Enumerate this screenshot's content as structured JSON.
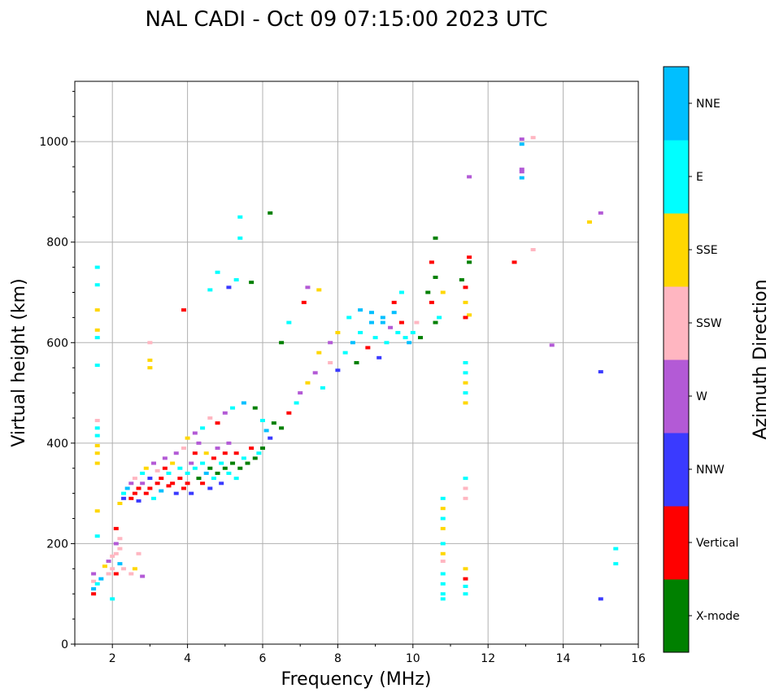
{
  "chart_data": {
    "type": "scatter",
    "title": "NAL CADI - Oct 09 07:15:00 2023 UTC",
    "xlabel": "Frequency (MHz)",
    "ylabel": "Virtual height (km)",
    "xlim": [
      1,
      16
    ],
    "ylim": [
      0,
      1120
    ],
    "x_ticks": [
      2,
      4,
      6,
      8,
      10,
      12,
      14,
      16
    ],
    "y_ticks": [
      0,
      200,
      400,
      600,
      800,
      1000
    ],
    "grid": true,
    "colorbar": {
      "label": "Azimuth Direction",
      "categories": [
        {
          "name": "X-mode",
          "color": "#008000"
        },
        {
          "name": "Vertical",
          "color": "#ff0000"
        },
        {
          "name": "NNW",
          "color": "#3a3aff"
        },
        {
          "name": "W",
          "color": "#b35ad6"
        },
        {
          "name": "SSW",
          "color": "#ffb6c1"
        },
        {
          "name": "SSE",
          "color": "#ffd700"
        },
        {
          "name": "E",
          "color": "#00ffff"
        },
        {
          "name": "NNE",
          "color": "#00bfff"
        }
      ]
    },
    "points": [
      [
        1.5,
        100,
        "Vertical"
      ],
      [
        1.5,
        110,
        "NNE"
      ],
      [
        1.5,
        125,
        "SSW"
      ],
      [
        1.5,
        140,
        "W"
      ],
      [
        1.6,
        120,
        "E"
      ],
      [
        1.6,
        415,
        "E"
      ],
      [
        1.6,
        395,
        "SSE"
      ],
      [
        1.6,
        380,
        "SSE"
      ],
      [
        1.6,
        360,
        "SSE"
      ],
      [
        1.6,
        430,
        "E"
      ],
      [
        1.6,
        445,
        "SSW"
      ],
      [
        1.6,
        555,
        "E"
      ],
      [
        1.6,
        610,
        "E"
      ],
      [
        1.6,
        625,
        "SSE"
      ],
      [
        1.6,
        665,
        "SSE"
      ],
      [
        1.6,
        715,
        "E"
      ],
      [
        1.6,
        750,
        "E"
      ],
      [
        1.6,
        265,
        "SSE"
      ],
      [
        1.6,
        215,
        "E"
      ],
      [
        1.7,
        130,
        "NNE"
      ],
      [
        1.8,
        155,
        "SSE"
      ],
      [
        1.9,
        140,
        "SSW"
      ],
      [
        1.9,
        165,
        "W"
      ],
      [
        2.0,
        150,
        "SSW"
      ],
      [
        2.0,
        175,
        "SSW"
      ],
      [
        2.0,
        90,
        "E"
      ],
      [
        2.1,
        230,
        "Vertical"
      ],
      [
        2.1,
        200,
        "W"
      ],
      [
        2.1,
        180,
        "SSW"
      ],
      [
        2.1,
        140,
        "Vertical"
      ],
      [
        2.2,
        210,
        "SSW"
      ],
      [
        2.2,
        190,
        "SSW"
      ],
      [
        2.2,
        160,
        "NNE"
      ],
      [
        2.3,
        150,
        "SSW"
      ],
      [
        2.5,
        140,
        "SSW"
      ],
      [
        2.6,
        150,
        "SSE"
      ],
      [
        2.7,
        180,
        "SSW"
      ],
      [
        2.8,
        135,
        "W"
      ],
      [
        2.2,
        280,
        "SSE"
      ],
      [
        2.3,
        300,
        "E"
      ],
      [
        2.3,
        290,
        "NNW"
      ],
      [
        2.4,
        310,
        "NNE"
      ],
      [
        2.5,
        290,
        "Vertical"
      ],
      [
        2.5,
        320,
        "W"
      ],
      [
        2.6,
        330,
        "SSW"
      ],
      [
        2.6,
        300,
        "Vertical"
      ],
      [
        2.7,
        285,
        "NNW"
      ],
      [
        2.7,
        310,
        "Vertical"
      ],
      [
        2.8,
        340,
        "E"
      ],
      [
        2.8,
        320,
        "W"
      ],
      [
        2.9,
        300,
        "Vertical"
      ],
      [
        2.9,
        350,
        "SSE"
      ],
      [
        3.0,
        310,
        "Vertical"
      ],
      [
        3.0,
        330,
        "NNW"
      ],
      [
        3.1,
        360,
        "W"
      ],
      [
        3.1,
        290,
        "E"
      ],
      [
        3.2,
        320,
        "Vertical"
      ],
      [
        3.2,
        345,
        "SSW"
      ],
      [
        3.3,
        330,
        "Vertical"
      ],
      [
        3.3,
        305,
        "NNE"
      ],
      [
        3.4,
        350,
        "Vertical"
      ],
      [
        3.4,
        370,
        "W"
      ],
      [
        3.5,
        315,
        "Vertical"
      ],
      [
        3.5,
        340,
        "E"
      ],
      [
        3.6,
        360,
        "SSE"
      ],
      [
        3.6,
        320,
        "Vertical"
      ],
      [
        3.7,
        300,
        "NNW"
      ],
      [
        3.7,
        380,
        "W"
      ],
      [
        3.8,
        330,
        "Vertical"
      ],
      [
        3.8,
        350,
        "E"
      ],
      [
        3.9,
        310,
        "Vertical"
      ],
      [
        3.9,
        390,
        "SSW"
      ],
      [
        4.0,
        340,
        "E"
      ],
      [
        4.0,
        320,
        "Vertical"
      ],
      [
        4.1,
        360,
        "W"
      ],
      [
        4.1,
        300,
        "NNW"
      ],
      [
        4.2,
        350,
        "E"
      ],
      [
        4.2,
        380,
        "Vertical"
      ],
      [
        4.3,
        330,
        "X-mode"
      ],
      [
        4.3,
        400,
        "W"
      ],
      [
        4.4,
        360,
        "E"
      ],
      [
        4.4,
        320,
        "Vertical"
      ],
      [
        4.5,
        340,
        "NNE"
      ],
      [
        4.5,
        380,
        "SSE"
      ],
      [
        4.6,
        350,
        "X-mode"
      ],
      [
        4.6,
        310,
        "NNW"
      ],
      [
        4.7,
        370,
        "Vertical"
      ],
      [
        4.7,
        330,
        "E"
      ],
      [
        4.8,
        390,
        "W"
      ],
      [
        4.8,
        340,
        "X-mode"
      ],
      [
        4.9,
        360,
        "E"
      ],
      [
        4.9,
        320,
        "NNW"
      ],
      [
        5.0,
        350,
        "X-mode"
      ],
      [
        5.0,
        380,
        "Vertical"
      ],
      [
        5.1,
        340,
        "E"
      ],
      [
        5.1,
        400,
        "W"
      ],
      [
        5.2,
        360,
        "X-mode"
      ],
      [
        5.3,
        330,
        "E"
      ],
      [
        5.3,
        380,
        "Vertical"
      ],
      [
        5.4,
        350,
        "X-mode"
      ],
      [
        5.5,
        370,
        "E"
      ],
      [
        5.6,
        360,
        "X-mode"
      ],
      [
        5.7,
        390,
        "Vertical"
      ],
      [
        5.8,
        370,
        "X-mode"
      ],
      [
        5.9,
        380,
        "E"
      ],
      [
        6.0,
        390,
        "X-mode"
      ],
      [
        4.0,
        410,
        "SSE"
      ],
      [
        4.2,
        420,
        "W"
      ],
      [
        4.4,
        430,
        "E"
      ],
      [
        4.6,
        450,
        "SSW"
      ],
      [
        4.8,
        440,
        "Vertical"
      ],
      [
        5.0,
        460,
        "W"
      ],
      [
        5.2,
        470,
        "E"
      ],
      [
        5.5,
        480,
        "NNE"
      ],
      [
        5.8,
        470,
        "X-mode"
      ],
      [
        6.0,
        445,
        "E"
      ],
      [
        6.1,
        425,
        "NNE"
      ],
      [
        6.2,
        410,
        "NNW"
      ],
      [
        6.3,
        440,
        "X-mode"
      ],
      [
        6.5,
        430,
        "X-mode"
      ],
      [
        6.7,
        460,
        "Vertical"
      ],
      [
        6.9,
        480,
        "E"
      ],
      [
        7.0,
        500,
        "W"
      ],
      [
        7.2,
        520,
        "SSE"
      ],
      [
        7.4,
        540,
        "W"
      ],
      [
        7.6,
        510,
        "E"
      ],
      [
        7.8,
        560,
        "SSW"
      ],
      [
        8.0,
        545,
        "NNW"
      ],
      [
        8.2,
        580,
        "E"
      ],
      [
        8.4,
        600,
        "NNE"
      ],
      [
        8.5,
        560,
        "X-mode"
      ],
      [
        8.6,
        620,
        "E"
      ],
      [
        8.8,
        590,
        "Vertical"
      ],
      [
        8.9,
        640,
        "NNE"
      ],
      [
        9.0,
        610,
        "E"
      ],
      [
        9.1,
        570,
        "NNW"
      ],
      [
        9.2,
        650,
        "NNE"
      ],
      [
        9.3,
        600,
        "E"
      ],
      [
        9.4,
        630,
        "W"
      ],
      [
        9.5,
        660,
        "NNE"
      ],
      [
        9.6,
        620,
        "E"
      ],
      [
        9.7,
        640,
        "Vertical"
      ],
      [
        9.8,
        610,
        "E"
      ],
      [
        9.9,
        600,
        "NNE"
      ],
      [
        10.0,
        620,
        "E"
      ],
      [
        10.1,
        640,
        "SSW"
      ],
      [
        10.2,
        610,
        "X-mode"
      ],
      [
        7.5,
        580,
        "SSE"
      ],
      [
        7.8,
        600,
        "W"
      ],
      [
        8.0,
        620,
        "SSE"
      ],
      [
        8.3,
        650,
        "E"
      ],
      [
        8.6,
        665,
        "NNE"
      ],
      [
        8.9,
        660,
        "NNE"
      ],
      [
        9.2,
        640,
        "NNE"
      ],
      [
        9.5,
        680,
        "Vertical"
      ],
      [
        9.7,
        700,
        "E"
      ],
      [
        7.2,
        710,
        "W"
      ],
      [
        7.5,
        705,
        "SSE"
      ],
      [
        7.1,
        680,
        "Vertical"
      ],
      [
        6.7,
        640,
        "E"
      ],
      [
        6.5,
        600,
        "X-mode"
      ],
      [
        5.3,
        725,
        "E"
      ],
      [
        4.8,
        740,
        "E"
      ],
      [
        4.6,
        705,
        "E"
      ],
      [
        5.1,
        710,
        "NNW"
      ],
      [
        5.7,
        720,
        "X-mode"
      ],
      [
        5.4,
        808,
        "E"
      ],
      [
        5.4,
        850,
        "E"
      ],
      [
        6.2,
        858,
        "X-mode"
      ],
      [
        3.9,
        665,
        "Vertical"
      ],
      [
        3.0,
        600,
        "SSW"
      ],
      [
        3.0,
        565,
        "SSE"
      ],
      [
        3.0,
        550,
        "SSE"
      ],
      [
        10.4,
        700,
        "X-mode"
      ],
      [
        10.5,
        760,
        "Vertical"
      ],
      [
        10.6,
        730,
        "X-mode"
      ],
      [
        10.5,
        680,
        "Vertical"
      ],
      [
        10.7,
        650,
        "E"
      ],
      [
        10.6,
        640,
        "X-mode"
      ],
      [
        10.8,
        700,
        "SSE"
      ],
      [
        10.6,
        808,
        "X-mode"
      ],
      [
        11.3,
        725,
        "X-mode"
      ],
      [
        11.4,
        710,
        "Vertical"
      ],
      [
        11.5,
        770,
        "Vertical"
      ],
      [
        11.5,
        760,
        "X-mode"
      ],
      [
        11.5,
        655,
        "SSE"
      ],
      [
        11.4,
        680,
        "SSE"
      ],
      [
        11.4,
        650,
        "Vertical"
      ],
      [
        11.5,
        930,
        "W"
      ],
      [
        10.8,
        290,
        "E"
      ],
      [
        10.8,
        270,
        "SSE"
      ],
      [
        10.8,
        250,
        "E"
      ],
      [
        10.8,
        230,
        "SSE"
      ],
      [
        10.8,
        200,
        "E"
      ],
      [
        10.8,
        180,
        "SSE"
      ],
      [
        10.8,
        165,
        "SSW"
      ],
      [
        10.8,
        140,
        "E"
      ],
      [
        10.8,
        120,
        "E"
      ],
      [
        10.8,
        100,
        "E"
      ],
      [
        10.8,
        90,
        "E"
      ],
      [
        11.4,
        560,
        "E"
      ],
      [
        11.4,
        540,
        "E"
      ],
      [
        11.4,
        520,
        "SSE"
      ],
      [
        11.4,
        500,
        "E"
      ],
      [
        11.4,
        480,
        "SSE"
      ],
      [
        11.4,
        330,
        "E"
      ],
      [
        11.4,
        310,
        "SSW"
      ],
      [
        11.4,
        290,
        "SSW"
      ],
      [
        11.4,
        150,
        "SSE"
      ],
      [
        11.4,
        130,
        "Vertical"
      ],
      [
        11.4,
        115,
        "E"
      ],
      [
        11.4,
        100,
        "E"
      ],
      [
        12.7,
        760,
        "Vertical"
      ],
      [
        12.9,
        1005,
        "W"
      ],
      [
        12.9,
        995,
        "NNE"
      ],
      [
        12.9,
        945,
        "W"
      ],
      [
        12.9,
        940,
        "W"
      ],
      [
        12.9,
        928,
        "NNE"
      ],
      [
        13.2,
        1008,
        "SSW"
      ],
      [
        13.2,
        785,
        "SSW"
      ],
      [
        13.7,
        595,
        "W"
      ],
      [
        14.7,
        840,
        "SSE"
      ],
      [
        15.0,
        858,
        "W"
      ],
      [
        15.0,
        542,
        "NNW"
      ],
      [
        15.0,
        90,
        "NNW"
      ],
      [
        15.4,
        190,
        "E"
      ],
      [
        15.4,
        160,
        "E"
      ]
    ]
  }
}
